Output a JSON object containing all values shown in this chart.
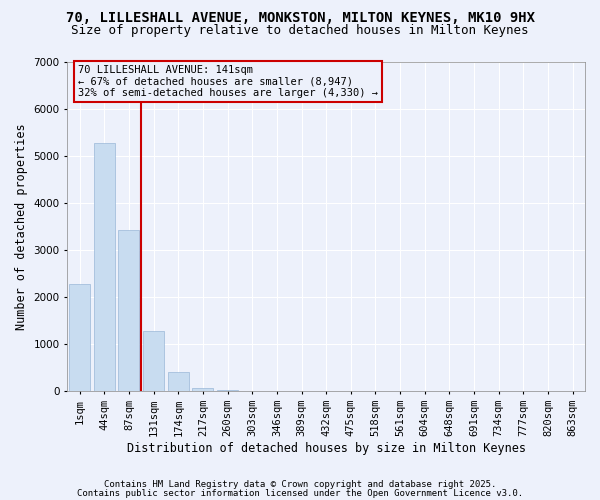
{
  "title": "70, LILLESHALL AVENUE, MONKSTON, MILTON KEYNES, MK10 9HX",
  "subtitle": "Size of property relative to detached houses in Milton Keynes",
  "xlabel": "Distribution of detached houses by size in Milton Keynes",
  "ylabel": "Number of detached properties",
  "categories": [
    "1sqm",
    "44sqm",
    "87sqm",
    "131sqm",
    "174sqm",
    "217sqm",
    "260sqm",
    "303sqm",
    "346sqm",
    "389sqm",
    "432sqm",
    "475sqm",
    "518sqm",
    "561sqm",
    "604sqm",
    "648sqm",
    "691sqm",
    "734sqm",
    "777sqm",
    "820sqm",
    "863sqm"
  ],
  "values": [
    2280,
    5270,
    3420,
    1290,
    420,
    75,
    18,
    8,
    3,
    1,
    0,
    0,
    0,
    0,
    0,
    0,
    0,
    0,
    0,
    0,
    0
  ],
  "bar_color": "#c8dcf0",
  "bar_edge_color": "#9ab8d8",
  "vline_x": 2.5,
  "vline_color": "#cc0000",
  "annotation_line1": "70 LILLESHALL AVENUE: 141sqm",
  "annotation_line2": "← 67% of detached houses are smaller (8,947)",
  "annotation_line3": "32% of semi-detached houses are larger (4,330) →",
  "annotation_box_edgecolor": "#cc0000",
  "ylim": [
    0,
    7000
  ],
  "yticks": [
    0,
    1000,
    2000,
    3000,
    4000,
    5000,
    6000,
    7000
  ],
  "bg_color": "#edf1fb",
  "grid_color": "#ffffff",
  "title_fontsize": 10,
  "subtitle_fontsize": 9,
  "ylabel_fontsize": 8.5,
  "xlabel_fontsize": 8.5,
  "tick_fontsize": 7.5,
  "ann_fontsize": 7.5,
  "footnote_fontsize": 6.5,
  "footnote1": "Contains HM Land Registry data © Crown copyright and database right 2025.",
  "footnote2": "Contains public sector information licensed under the Open Government Licence v3.0."
}
